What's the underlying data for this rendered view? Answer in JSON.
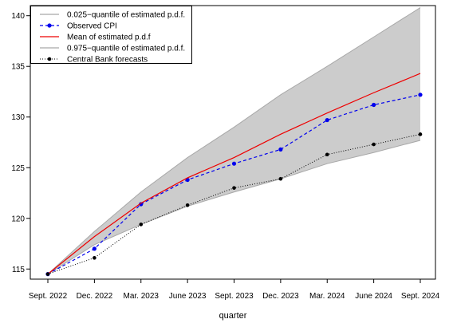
{
  "chart_data": {
    "type": "line",
    "title": "",
    "xlabel": "quarter",
    "ylabel": "",
    "categories": [
      "Sept. 2022",
      "Dec. 2022",
      "Mar. 2023",
      "June 2023",
      "Sept. 2023",
      "Dec. 2023",
      "Mar. 2024",
      "June 2024",
      "Sept. 2024"
    ],
    "ylim": [
      114,
      141
    ],
    "yticks": [
      115,
      120,
      125,
      130,
      135,
      140
    ],
    "grid": false,
    "legend_position": "top-left",
    "series": [
      {
        "name": "0.025−quantile of estimated p.d.f.",
        "color": "#a8a8a8",
        "style": "band-lower",
        "values": [
          114.5,
          117.4,
          119.4,
          121.2,
          122.6,
          123.9,
          125.4,
          126.5,
          127.7
        ]
      },
      {
        "name": "Observed CPI",
        "color": "#0000ee",
        "style": "dashed-points",
        "values": [
          114.5,
          117.0,
          121.4,
          123.8,
          125.4,
          126.8,
          129.7,
          131.2,
          132.2
        ]
      },
      {
        "name": "Mean of estimated p.d.f",
        "color": "#ee0000",
        "style": "solid",
        "values": [
          114.5,
          118.2,
          121.5,
          124.0,
          126.0,
          128.3,
          130.4,
          132.4,
          134.3
        ]
      },
      {
        "name": "0.975−quantile of estimated p.d.f.",
        "color": "#a8a8a8",
        "style": "band-upper",
        "values": [
          114.5,
          118.7,
          122.6,
          126.0,
          129.0,
          132.2,
          135.0,
          137.9,
          140.8
        ]
      },
      {
        "name": "Central Bank forecasts",
        "color": "#000000",
        "style": "dotted-points",
        "values": [
          114.5,
          116.1,
          119.4,
          121.3,
          123.0,
          123.9,
          126.3,
          127.3,
          128.3
        ]
      }
    ],
    "band_fill": "#cccccc"
  }
}
